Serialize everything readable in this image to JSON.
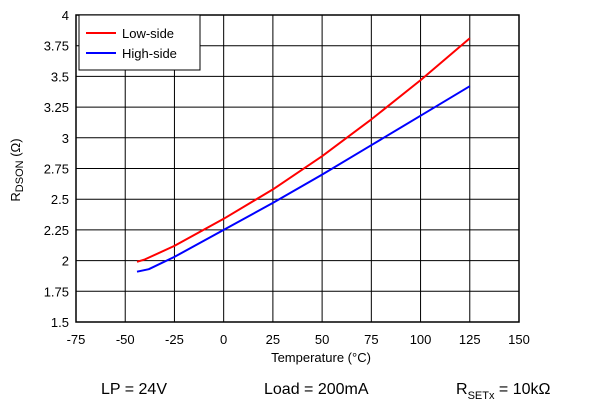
{
  "chart_data": {
    "type": "line",
    "xlabel": "Temperature (°C)",
    "ylabel_main": "R",
    "ylabel_sub": "DSON",
    "ylabel_unit": " (Ω)",
    "xlim": [
      -75,
      150
    ],
    "ylim": [
      1.5,
      4
    ],
    "x_ticks": [
      "-75",
      "-50",
      "-25",
      "0",
      "25",
      "50",
      "75",
      "100",
      "125",
      "150"
    ],
    "y_ticks": [
      "1.5",
      "1.75",
      "2",
      "2.25",
      "2.5",
      "2.75",
      "3",
      "3.25",
      "3.5",
      "3.75",
      "4"
    ],
    "x_tick_values": [
      -75,
      -50,
      -25,
      0,
      25,
      50,
      75,
      100,
      125,
      150
    ],
    "y_tick_values": [
      1.5,
      1.75,
      2,
      2.25,
      2.5,
      2.75,
      3,
      3.25,
      3.5,
      3.75,
      4
    ],
    "grid": true,
    "legend_position": "top-left",
    "series": [
      {
        "name": "Low-side",
        "color": "#ff0000",
        "x": [
          -44,
          -40,
          -25,
          0,
          25,
          50,
          75,
          100,
          125
        ],
        "y": [
          1.99,
          2.01,
          2.12,
          2.34,
          2.58,
          2.85,
          3.15,
          3.47,
          3.81
        ]
      },
      {
        "name": "High-side",
        "color": "#0000ff",
        "x": [
          -44,
          -38,
          -25,
          0,
          25,
          50,
          75,
          100,
          125
        ],
        "y": [
          1.91,
          1.93,
          2.03,
          2.25,
          2.47,
          2.7,
          2.94,
          3.18,
          3.42
        ]
      }
    ]
  },
  "conditions": {
    "lp": "LP = 24V",
    "load": "Load = 200mA",
    "rset_main": "R",
    "rset_sub": "SETx",
    "rset_value": " = 10kΩ"
  }
}
